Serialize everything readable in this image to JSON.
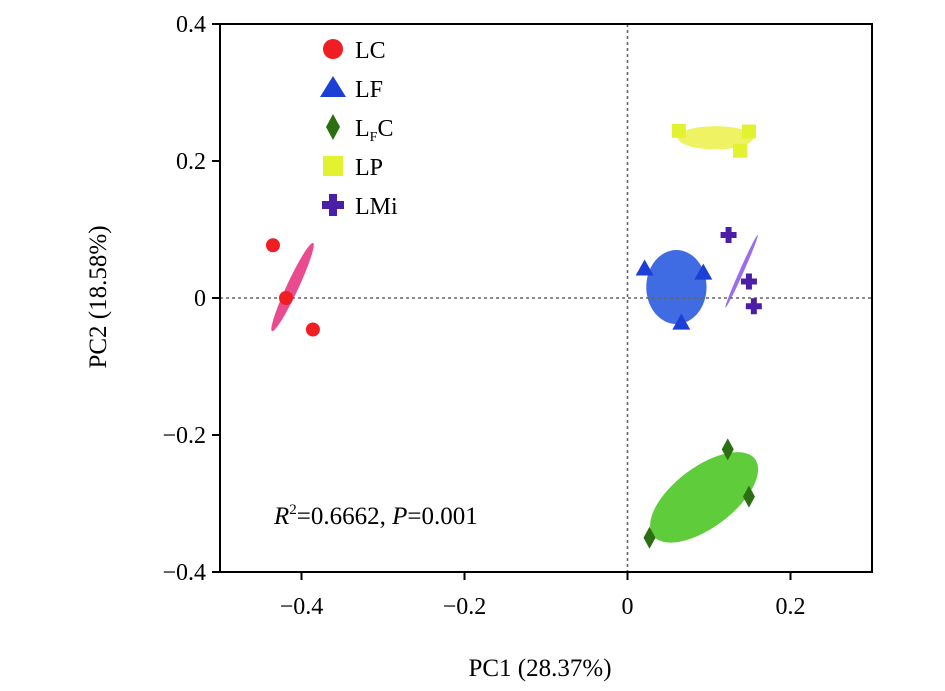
{
  "chart_data": {
    "type": "scatter",
    "xlabel": "PC1 (28.37%)",
    "ylabel": "PC2 (18.58%)",
    "xlim": [
      -0.5,
      0.3
    ],
    "ylim": [
      -0.4,
      0.4
    ],
    "x_ticks": [
      -0.4,
      -0.2,
      0,
      0.2
    ],
    "x_tick_labels": [
      "−0.4",
      "−0.2",
      "0",
      "0.2"
    ],
    "y_ticks": [
      -0.4,
      -0.2,
      0,
      0.2,
      0.4
    ],
    "y_tick_labels": [
      "−0.4",
      "−0.2",
      "0",
      "0.2",
      "0.4"
    ],
    "reference_lines": {
      "x": 0,
      "y": 0,
      "style": "dotted"
    },
    "grid": false,
    "legend_position": "top-left",
    "annotation": {
      "r_label": "R",
      "r_sup": "2",
      "r_value": "=0.6662, ",
      "p_label": "P",
      "p_value": "=0.001"
    },
    "series": [
      {
        "name": "LC",
        "name_main": "LC",
        "marker": "circle",
        "color": "#f01e23",
        "ellipse_color": "#e94b8e",
        "points": [
          [
            -0.435,
            0.077
          ],
          [
            -0.419,
            0.0
          ],
          [
            -0.386,
            -0.046
          ]
        ],
        "ellipse": {
          "cx": -0.411,
          "cy": 0.016,
          "rx": 0.071,
          "ry": 0.0085,
          "angle_deg": 65
        }
      },
      {
        "name": "LF",
        "name_main": "LF",
        "marker": "triangle",
        "color": "#1c3fd6",
        "ellipse_color": "#3f6be3",
        "points": [
          [
            0.021,
            0.043
          ],
          [
            0.066,
            -0.036
          ],
          [
            0.093,
            0.037
          ]
        ],
        "ellipse": {
          "cx": 0.06,
          "cy": 0.016,
          "rx": 0.044,
          "ry": 0.054,
          "angle_deg": 0
        }
      },
      {
        "name": "LFC",
        "name_main": "L",
        "name_sub": "F",
        "name_tail": "C",
        "marker": "diamond",
        "color": "#2c6e12",
        "ellipse_color": "#5fcc3c",
        "points": [
          [
            0.027,
            -0.35
          ],
          [
            0.123,
            -0.221
          ],
          [
            0.149,
            -0.29
          ]
        ],
        "ellipse": {
          "cx": 0.094,
          "cy": -0.291,
          "rx": 0.093,
          "ry": 0.044,
          "angle_deg": 37
        }
      },
      {
        "name": "LP",
        "name_main": "LP",
        "marker": "square",
        "color": "#e3f230",
        "ellipse_color": "#eef263",
        "points": [
          [
            0.063,
            0.244
          ],
          [
            0.138,
            0.215
          ],
          [
            0.149,
            0.243
          ]
        ],
        "ellipse": {
          "cx": 0.108,
          "cy": 0.234,
          "rx": 0.055,
          "ry": 0.017,
          "angle_deg": 0
        }
      },
      {
        "name": "LMi",
        "name_main": "LMi",
        "marker": "plus",
        "color": "#4a1fa6",
        "ellipse_color": "#9a6cf0",
        "points": [
          [
            0.124,
            0.092
          ],
          [
            0.149,
            0.024
          ],
          [
            0.155,
            -0.012
          ]
        ],
        "ellipse": {
          "cx": 0.14,
          "cy": 0.039,
          "rx": 0.058,
          "ry": 0.003,
          "angle_deg": 66
        }
      }
    ]
  }
}
